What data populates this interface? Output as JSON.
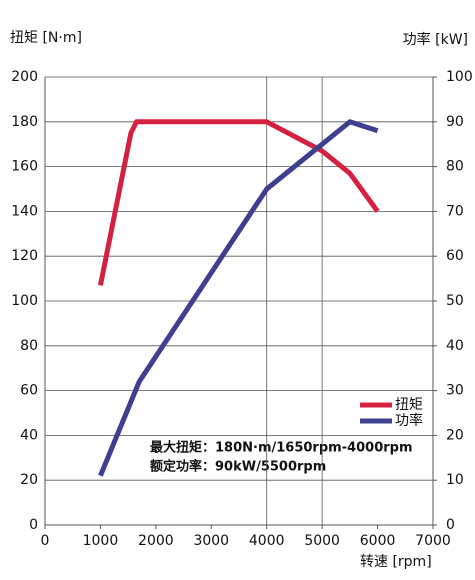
{
  "chart_data": {
    "type": "line",
    "ylabel": "扭矩 [N·m]",
    "y2label": "功率 [kW]",
    "xlabel": "转速 [rpm]",
    "annotations": [
      "最大扭矩：180N·m/1650rpm-4000rpm",
      "额定功率：90kW/5500rpm"
    ],
    "series": [
      {
        "name": "扭矩",
        "color": "#d6203f",
        "x": [
          1000,
          1550,
          1650,
          4000,
          5000,
          5500,
          6000
        ],
        "values": [
          107,
          175,
          180,
          180,
          167,
          157,
          140
        ]
      },
      {
        "name": "功率",
        "color": "#3d3f8f",
        "axis": "y2",
        "x": [
          1000,
          1700,
          4000,
          5500,
          6000
        ],
        "values": [
          11,
          32,
          75,
          90,
          88
        ]
      }
    ],
    "xlim": [
      0,
      7000
    ],
    "xticks": [
      0,
      1000,
      2000,
      3000,
      4000,
      5000,
      6000,
      7000
    ],
    "ylim": [
      0,
      200
    ],
    "yticks": [
      0,
      20,
      40,
      60,
      80,
      100,
      120,
      140,
      160,
      180,
      200
    ],
    "y2lim": [
      0,
      100
    ],
    "y2ticks": [
      0,
      10,
      20,
      30,
      40,
      50,
      60,
      70,
      80,
      90,
      100
    ],
    "grid": true,
    "xgrid": [
      4000,
      5000
    ]
  }
}
